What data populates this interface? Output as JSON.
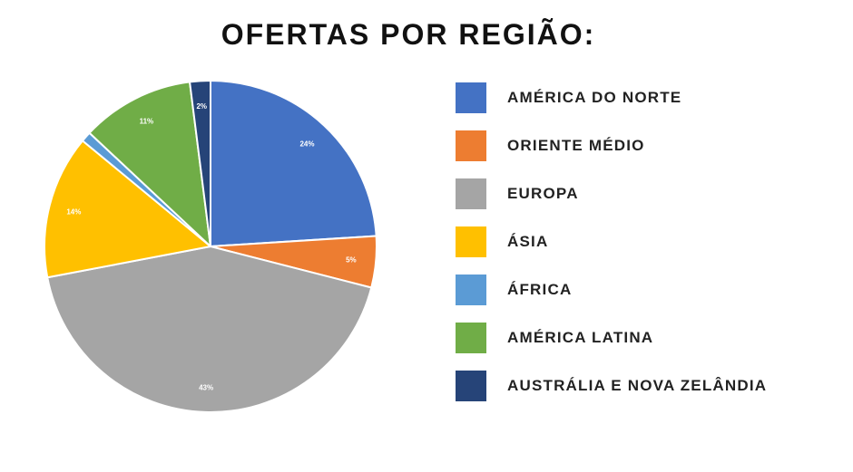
{
  "chart_data": {
    "type": "pie",
    "title": "OFERTAS POR REGIÃO:",
    "categories": [
      "AMÉRICA DO NORTE",
      "ORIENTE MÉDIO",
      "EUROPA",
      "ÁSIA",
      "ÁFRICA",
      "AMÉRICA LATINA",
      "AUSTRÁLIA E NOVA ZELÂNDIA"
    ],
    "values": [
      24,
      5,
      43,
      14,
      1,
      11,
      2
    ],
    "labels": [
      "24%",
      "5%",
      "43%",
      "14%",
      "",
      "11%",
      "2%"
    ],
    "colors": [
      "#4472C4",
      "#ED7D31",
      "#A5A5A5",
      "#FFC000",
      "#5B9BD5",
      "#70AD47",
      "#264478"
    ],
    "legend_position": "right",
    "start_angle": "12 o'clock",
    "direction": "clockwise"
  }
}
